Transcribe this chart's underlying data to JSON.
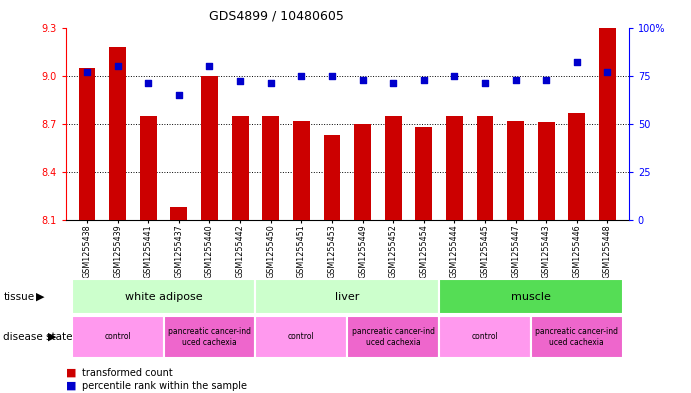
{
  "title": "GDS4899 / 10480605",
  "samples": [
    "GSM1255438",
    "GSM1255439",
    "GSM1255441",
    "GSM1255437",
    "GSM1255440",
    "GSM1255442",
    "GSM1255450",
    "GSM1255451",
    "GSM1255453",
    "GSM1255449",
    "GSM1255452",
    "GSM1255454",
    "GSM1255444",
    "GSM1255445",
    "GSM1255447",
    "GSM1255443",
    "GSM1255446",
    "GSM1255448"
  ],
  "transformed_count": [
    9.05,
    9.18,
    8.75,
    8.18,
    9.0,
    8.75,
    8.75,
    8.72,
    8.63,
    8.7,
    8.75,
    8.68,
    8.75,
    8.75,
    8.72,
    8.71,
    8.77,
    9.3
  ],
  "percentile_rank": [
    77,
    80,
    71,
    65,
    80,
    72,
    71,
    75,
    75,
    73,
    71,
    73,
    75,
    71,
    73,
    73,
    82,
    77
  ],
  "ylim_left": [
    8.1,
    9.3
  ],
  "ylim_right": [
    0,
    100
  ],
  "yticks_left": [
    8.1,
    8.4,
    8.7,
    9.0,
    9.3
  ],
  "yticks_right": [
    0,
    25,
    50,
    75,
    100
  ],
  "bar_color": "#CC0000",
  "dot_color": "#0000CC",
  "tissue_groups": [
    {
      "label": "white adipose",
      "start": 0,
      "end": 5,
      "color": "#CCFFCC"
    },
    {
      "label": "liver",
      "start": 6,
      "end": 11,
      "color": "#CCFFCC"
    },
    {
      "label": "muscle",
      "start": 12,
      "end": 17,
      "color": "#55DD55"
    }
  ],
  "disease_groups": [
    {
      "label": "control",
      "start": 0,
      "end": 2,
      "color": "#FF99EE"
    },
    {
      "label": "pancreatic cancer-ind\nuced cachexia",
      "start": 3,
      "end": 5,
      "color": "#EE66CC"
    },
    {
      "label": "control",
      "start": 6,
      "end": 8,
      "color": "#FF99EE"
    },
    {
      "label": "pancreatic cancer-ind\nuced cachexia",
      "start": 9,
      "end": 11,
      "color": "#EE66CC"
    },
    {
      "label": "control",
      "start": 12,
      "end": 14,
      "color": "#FF99EE"
    },
    {
      "label": "pancreatic cancer-ind\nuced cachexia",
      "start": 15,
      "end": 17,
      "color": "#EE66CC"
    }
  ]
}
